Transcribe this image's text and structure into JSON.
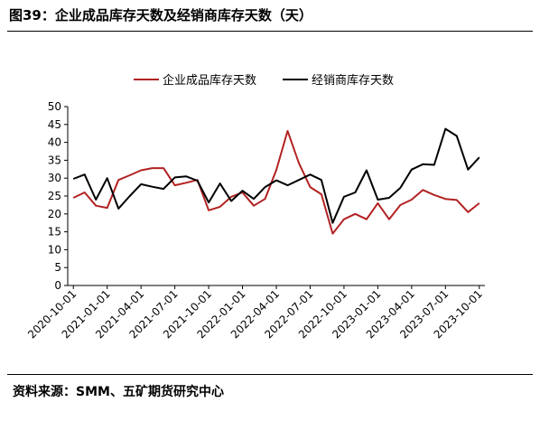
{
  "header": {
    "title": "图39：企业成品库存天数及经销商库存天数（天）"
  },
  "footer": {
    "source": "资料来源：SMM、五矿期货研究中心"
  },
  "chart_data": {
    "type": "line",
    "title": "",
    "xlabel": "",
    "ylabel": "",
    "ylim": [
      0,
      50
    ],
    "yticks": [
      0,
      5,
      10,
      15,
      20,
      25,
      30,
      35,
      40,
      45,
      50
    ],
    "grid": false,
    "legend_position": "top",
    "x_tick_labels": [
      "2020-10-01",
      "2021-01-01",
      "2021-04-01",
      "2021-07-01",
      "2021-10-01",
      "2022-01-01",
      "2022-04-01",
      "2022-07-01",
      "2022-10-01",
      "2023-01-01",
      "2023-04-01",
      "2023-07-01",
      "2023-10-01"
    ],
    "x": [
      "2020-10",
      "2020-11",
      "2020-12",
      "2021-01",
      "2021-02",
      "2021-03",
      "2021-04",
      "2021-05",
      "2021-06",
      "2021-07",
      "2021-08",
      "2021-09",
      "2021-10",
      "2021-11",
      "2021-12",
      "2022-01",
      "2022-02",
      "2022-03",
      "2022-04",
      "2022-05",
      "2022-06",
      "2022-07",
      "2022-08",
      "2022-09",
      "2022-10",
      "2022-11",
      "2022-12",
      "2023-01",
      "2023-02",
      "2023-03",
      "2023-04",
      "2023-05",
      "2023-06",
      "2023-07",
      "2023-08",
      "2023-09",
      "2023-10"
    ],
    "series": [
      {
        "name": "企业成品库存天数",
        "color": "#b22222",
        "values": [
          24.5,
          26,
          22.3,
          21.7,
          29.5,
          30.8,
          32.2,
          32.8,
          32.8,
          28,
          28.7,
          29.5,
          21,
          22,
          24.8,
          26,
          22.3,
          24.2,
          32.3,
          43.2,
          34.2,
          27.5,
          25.5,
          14.5,
          18.5,
          20,
          18.5,
          23,
          18.5,
          22.5,
          24,
          26.7,
          25.3,
          24.2,
          23.9,
          20.5,
          23
        ]
      },
      {
        "name": "经销商库存天数",
        "color": "#000000",
        "values": [
          29.8,
          31,
          24,
          30,
          21.5,
          25,
          28.3,
          27.6,
          27,
          30.2,
          30.5,
          29.3,
          23.2,
          28.5,
          23.6,
          26.5,
          24.2,
          27.5,
          29.4,
          28,
          29.5,
          31,
          29.5,
          17.5,
          24.8,
          26,
          32.2,
          24,
          24.5,
          27.3,
          32.4,
          33.9,
          33.7,
          43.8,
          41.8,
          32.4,
          35.8
        ]
      }
    ]
  }
}
